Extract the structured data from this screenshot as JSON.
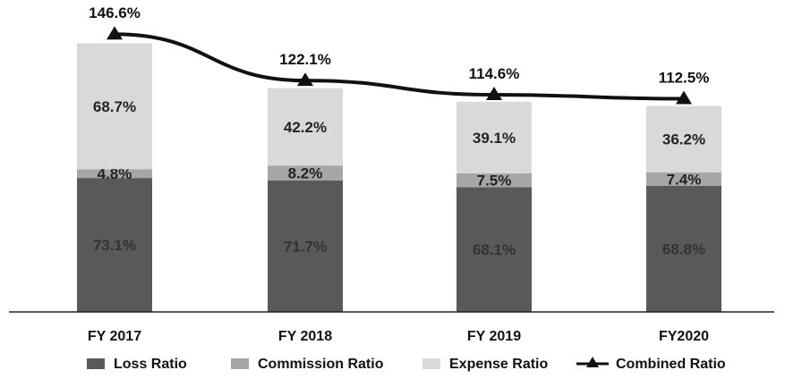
{
  "chart_data": {
    "type": "bar",
    "stacked": true,
    "categories": [
      "FY 2017",
      "FY 2018",
      "FY 2019",
      "FY2020"
    ],
    "series": [
      {
        "name": "Loss Ratio",
        "values": [
          73.1,
          71.7,
          68.1,
          68.8
        ],
        "color": "#595959",
        "labels": [
          "73.1%",
          "71.7%",
          "68.1%",
          "68.8%"
        ]
      },
      {
        "name": "Commission Ratio",
        "values": [
          4.8,
          8.2,
          7.5,
          7.4
        ],
        "color": "#a6a6a6",
        "labels": [
          "4.8%",
          "8.2%",
          "7.5%",
          "7.4%"
        ]
      },
      {
        "name": "Expense Ratio",
        "values": [
          68.7,
          42.2,
          39.1,
          36.2
        ],
        "color": "#d9d9d9",
        "labels": [
          "68.7%",
          "42.2%",
          "39.1%",
          "36.2%"
        ]
      }
    ],
    "line": {
      "name": "Combined Ratio",
      "values": [
        146.6,
        122.1,
        114.6,
        112.5
      ],
      "color": "#111111",
      "labels": [
        "146.6%",
        "122.1%",
        "114.6%",
        "112.5%"
      ],
      "marker": "triangle"
    },
    "title": "",
    "xlabel": "",
    "ylabel": "",
    "ylim": [
      0,
      150
    ],
    "grid": false,
    "legend_position": "bottom"
  }
}
